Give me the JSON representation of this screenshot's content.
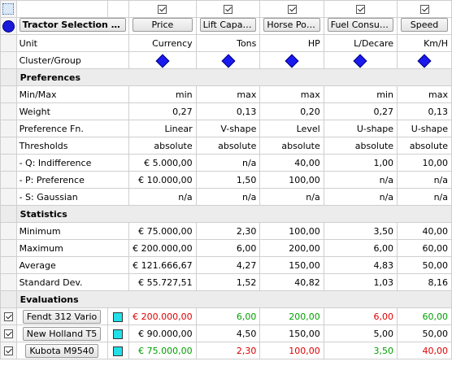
{
  "colors": {
    "best": "#00a000",
    "worst": "#e00000",
    "accent": "#1a1adb",
    "swatch": "#22e0e8"
  },
  "title": "Tractor Selection S...",
  "criteria": [
    {
      "name": "Price",
      "unit": "Currency"
    },
    {
      "name": "Lift Capacity",
      "unit": "Tons"
    },
    {
      "name": "Horse Power",
      "unit": "HP"
    },
    {
      "name": "Fuel Consum...",
      "unit": "L/Decare"
    },
    {
      "name": "Speed",
      "unit": "Km/H"
    }
  ],
  "rows": {
    "unit_label": "Unit",
    "cluster_label": "Cluster/Group"
  },
  "preferences": {
    "header": "Preferences",
    "rows": [
      {
        "label": "Min/Max",
        "values": [
          "min",
          "max",
          "max",
          "min",
          "max"
        ]
      },
      {
        "label": "Weight",
        "values": [
          "0,27",
          "0,13",
          "0,20",
          "0,27",
          "0,13"
        ]
      },
      {
        "label": "Preference Fn.",
        "values": [
          "Linear",
          "V-shape",
          "Level",
          "U-shape",
          "U-shape"
        ]
      },
      {
        "label": "Thresholds",
        "values": [
          "absolute",
          "absolute",
          "absolute",
          "absolute",
          "absolute"
        ]
      },
      {
        "label": "- Q: Indifference",
        "values": [
          "€ 5.000,00",
          "n/a",
          "40,00",
          "1,00",
          "10,00"
        ]
      },
      {
        "label": "- P: Preference",
        "values": [
          "€ 10.000,00",
          "1,50",
          "100,00",
          "n/a",
          "n/a"
        ]
      },
      {
        "label": "- S: Gaussian",
        "values": [
          "n/a",
          "n/a",
          "n/a",
          "n/a",
          "n/a"
        ]
      }
    ]
  },
  "statistics": {
    "header": "Statistics",
    "rows": [
      {
        "label": "Minimum",
        "values": [
          "€ 75.000,00",
          "2,30",
          "100,00",
          "3,50",
          "40,00"
        ]
      },
      {
        "label": "Maximum",
        "values": [
          "€ 200.000,00",
          "6,00",
          "200,00",
          "6,00",
          "60,00"
        ]
      },
      {
        "label": "Average",
        "values": [
          "€ 121.666,67",
          "4,27",
          "150,00",
          "4,83",
          "50,00"
        ]
      },
      {
        "label": "Standard Dev.",
        "values": [
          "€ 55.727,51",
          "1,52",
          "40,82",
          "1,03",
          "8,16"
        ]
      }
    ]
  },
  "evaluations": {
    "header": "Evaluations",
    "rows": [
      {
        "name": "Fendt 312 Vario",
        "checked": true,
        "values": [
          "€ 200.000,00",
          "6,00",
          "200,00",
          "6,00",
          "60,00"
        ],
        "styles": [
          "red",
          "green",
          "green",
          "red",
          "green"
        ]
      },
      {
        "name": "New Holland T5",
        "checked": true,
        "values": [
          "€ 90.000,00",
          "4,50",
          "150,00",
          "5,00",
          "50,00"
        ],
        "styles": [
          "",
          "",
          "",
          "",
          ""
        ]
      },
      {
        "name": "Kubota M9540",
        "checked": true,
        "values": [
          "€ 75.000,00",
          "2,30",
          "100,00",
          "3,50",
          "40,00"
        ],
        "styles": [
          "green",
          "red",
          "red",
          "green",
          "red"
        ]
      }
    ]
  }
}
